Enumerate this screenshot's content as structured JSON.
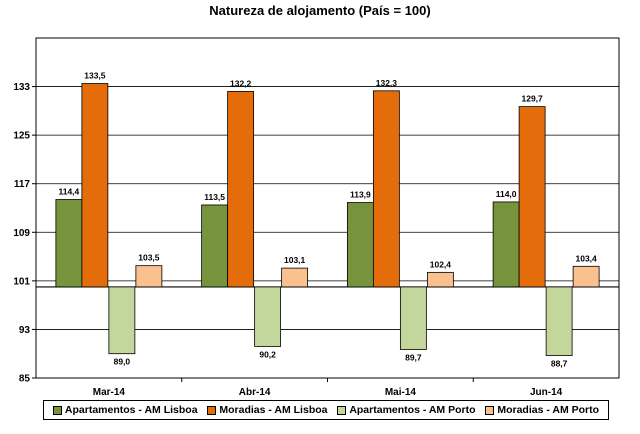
{
  "chart_data": {
    "type": "bar",
    "title": "Natureza de alojamento (País = 100)",
    "categories": [
      "Mar-14",
      "Abr-14",
      "Mai-14",
      "Jun-14"
    ],
    "baseline": 100,
    "ylim": [
      85,
      141
    ],
    "yticks": [
      85,
      93,
      101,
      109,
      117,
      125,
      133
    ],
    "grid": true,
    "legend_position": "bottom",
    "series": [
      {
        "name": "Apartamentos - AM Lisboa",
        "color": "#77933c",
        "values": [
          114.4,
          113.5,
          113.9,
          114.0
        ],
        "labels": [
          "114,4",
          "113,5",
          "113,9",
          "114,0"
        ]
      },
      {
        "name": "Moradias - AM Lisboa",
        "color": "#e46c0a",
        "values": [
          133.5,
          132.2,
          132.3,
          129.7
        ],
        "labels": [
          "133,5",
          "132,2",
          "132,3",
          "129,7"
        ]
      },
      {
        "name": "Apartamentos - AM Porto",
        "color": "#c3d69b",
        "values": [
          89.0,
          90.2,
          89.7,
          88.7
        ],
        "labels": [
          "89,0",
          "90,2",
          "89,7",
          "88,7"
        ]
      },
      {
        "name": "Moradias - AM Porto",
        "color": "#fac090",
        "values": [
          103.5,
          103.1,
          102.4,
          103.4
        ],
        "labels": [
          "103,5",
          "103,1",
          "102,4",
          "103,4"
        ]
      }
    ]
  }
}
